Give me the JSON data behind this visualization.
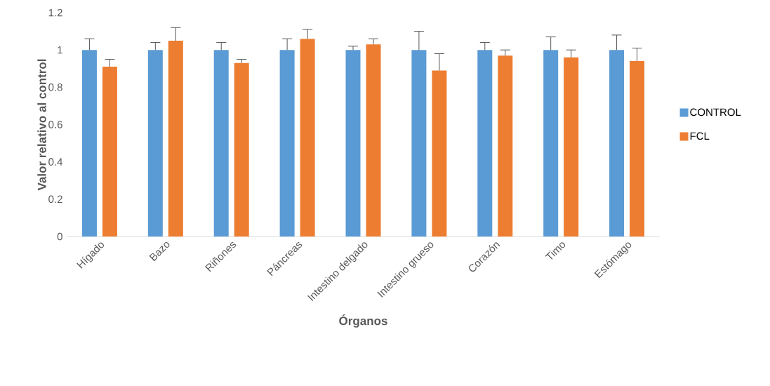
{
  "chart_data": {
    "type": "bar",
    "xlabel": "Órganos",
    "ylabel": "Valor relativo al control",
    "categories": [
      "Hígado",
      "Bazo",
      "Riñones",
      "Páncreas",
      "Intestino delgado",
      "Intestino grueso",
      "Corazón",
      "Timo",
      "Estómago"
    ],
    "series": [
      {
        "name": "CONTROL",
        "color": "#5b9bd5",
        "values": [
          1,
          1,
          1,
          1,
          1,
          1,
          1,
          1,
          1
        ],
        "errors": [
          [
            1,
            1.06
          ],
          [
            1,
            1.04
          ],
          [
            1,
            1.04
          ],
          [
            1,
            1.06
          ],
          [
            1,
            1.02
          ],
          [
            1,
            1.1
          ],
          [
            1,
            1.04
          ],
          [
            1,
            1.07
          ],
          [
            1,
            1.08
          ]
        ]
      },
      {
        "name": "FCL",
        "color": "#ed7d31",
        "values": [
          0.91,
          1.05,
          0.93,
          1.06,
          1.03,
          0.89,
          0.97,
          0.96,
          0.94
        ],
        "errors": [
          [
            0.91,
            0.95
          ],
          [
            1.05,
            1.12
          ],
          [
            0.93,
            0.95
          ],
          [
            1.06,
            1.11
          ],
          [
            1.03,
            1.06
          ],
          [
            0.89,
            0.98
          ],
          [
            0.97,
            1.0
          ],
          [
            0.96,
            1.0
          ],
          [
            0.94,
            1.01
          ]
        ]
      }
    ],
    "ylim": [
      0,
      1.2
    ],
    "yticks": [
      0,
      0.2,
      0.4,
      0.6,
      0.8,
      1,
      1.2
    ],
    "legend": "right"
  }
}
